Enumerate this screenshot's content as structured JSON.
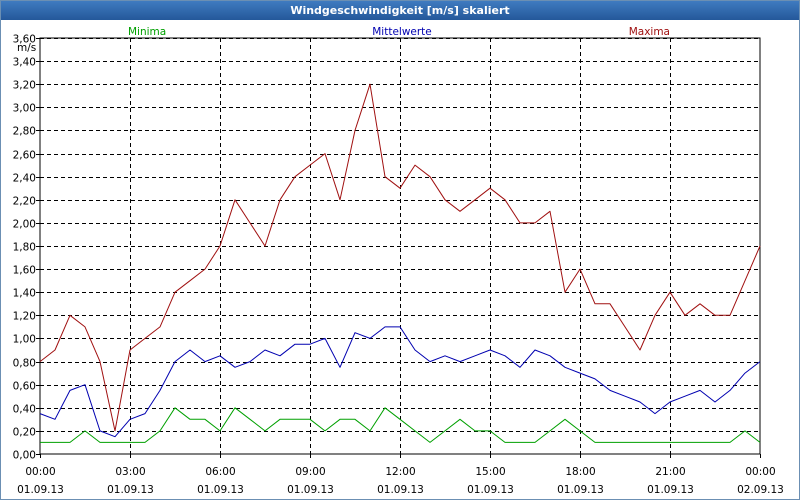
{
  "window": {
    "title": "Windgeschwindigkeit [m/s] skaliert"
  },
  "chart_data": {
    "type": "line",
    "title": "Windgeschwindigkeit [m/s] skaliert",
    "ylabel": "m/s",
    "xlabel": "",
    "ylim": [
      0,
      3.6
    ],
    "xlim": [
      0,
      24
    ],
    "grid": true,
    "y_ticks": [
      0,
      0.2,
      0.4,
      0.6,
      0.8,
      1.0,
      1.2,
      1.4,
      1.6,
      1.8,
      2.0,
      2.2,
      2.4,
      2.6,
      2.8,
      3.0,
      3.2,
      3.4,
      3.6
    ],
    "y_tick_labels": [
      "0,00",
      "0,20",
      "0,40",
      "0,60",
      "0,80",
      "1,00",
      "1,20",
      "1,40",
      "1,60",
      "1,80",
      "2,00",
      "2,20",
      "2,40",
      "2,60",
      "2,80",
      "3,00",
      "3,20",
      "3,40",
      "3,60"
    ],
    "x_ticks": [
      0,
      3,
      6,
      9,
      12,
      15,
      18,
      21,
      24
    ],
    "x_tick_labels": [
      {
        "time": "00:00",
        "date": "01.09.13"
      },
      {
        "time": "03:00",
        "date": "01.09.13"
      },
      {
        "time": "06:00",
        "date": "01.09.13"
      },
      {
        "time": "09:00",
        "date": "01.09.13"
      },
      {
        "time": "12:00",
        "date": "01.09.13"
      },
      {
        "time": "15:00",
        "date": "01.09.13"
      },
      {
        "time": "18:00",
        "date": "01.09.13"
      },
      {
        "time": "21:00",
        "date": "01.09.13"
      },
      {
        "time": "00:00",
        "date": "02.09.13"
      }
    ],
    "x": [
      0.0,
      0.5,
      1.0,
      1.5,
      2.0,
      2.5,
      3.0,
      3.5,
      4.0,
      4.5,
      5.0,
      5.5,
      6.0,
      6.5,
      7.0,
      7.5,
      8.0,
      8.5,
      9.0,
      9.5,
      10.0,
      10.5,
      11.0,
      11.5,
      12.0,
      12.5,
      13.0,
      13.5,
      14.0,
      14.5,
      15.0,
      15.5,
      16.0,
      16.5,
      17.0,
      17.5,
      18.0,
      18.5,
      19.0,
      19.5,
      20.0,
      20.5,
      21.0,
      21.5,
      22.0,
      22.5,
      23.0,
      23.5,
      24.0
    ],
    "series": [
      {
        "name": "Minima",
        "color": "#00a000",
        "values": [
          0.1,
          0.1,
          0.1,
          0.2,
          0.1,
          0.1,
          0.1,
          0.1,
          0.2,
          0.4,
          0.3,
          0.3,
          0.2,
          0.4,
          0.3,
          0.2,
          0.3,
          0.3,
          0.3,
          0.2,
          0.3,
          0.3,
          0.2,
          0.4,
          0.3,
          0.2,
          0.1,
          0.2,
          0.3,
          0.2,
          0.2,
          0.1,
          0.1,
          0.1,
          0.2,
          0.3,
          0.2,
          0.1,
          0.1,
          0.1,
          0.1,
          0.1,
          0.1,
          0.1,
          0.1,
          0.1,
          0.1,
          0.2,
          0.1
        ]
      },
      {
        "name": "Mittelwerte",
        "color": "#0000b0",
        "values": [
          0.35,
          0.3,
          0.55,
          0.6,
          0.2,
          0.15,
          0.3,
          0.35,
          0.55,
          0.8,
          0.9,
          0.8,
          0.85,
          0.75,
          0.8,
          0.9,
          0.85,
          0.95,
          0.95,
          1.0,
          0.75,
          1.05,
          1.0,
          1.1,
          1.1,
          0.9,
          0.8,
          0.85,
          0.8,
          0.85,
          0.9,
          0.85,
          0.75,
          0.9,
          0.85,
          0.75,
          0.7,
          0.65,
          0.55,
          0.5,
          0.45,
          0.35,
          0.45,
          0.5,
          0.55,
          0.45,
          0.55,
          0.7,
          0.8
        ]
      },
      {
        "name": "Maxima",
        "color": "#a01010",
        "values": [
          0.8,
          0.9,
          1.2,
          1.1,
          0.8,
          0.2,
          0.9,
          1.0,
          1.1,
          1.4,
          1.5,
          1.6,
          1.8,
          2.2,
          2.0,
          1.8,
          2.2,
          2.4,
          2.5,
          2.6,
          2.2,
          2.8,
          3.2,
          2.4,
          2.3,
          2.5,
          2.4,
          2.2,
          2.1,
          2.2,
          2.3,
          2.2,
          2.0,
          2.0,
          2.1,
          1.4,
          1.6,
          1.3,
          1.3,
          1.1,
          0.9,
          1.2,
          1.4,
          1.2,
          1.3,
          1.2,
          1.2,
          1.5,
          1.8
        ]
      }
    ]
  }
}
